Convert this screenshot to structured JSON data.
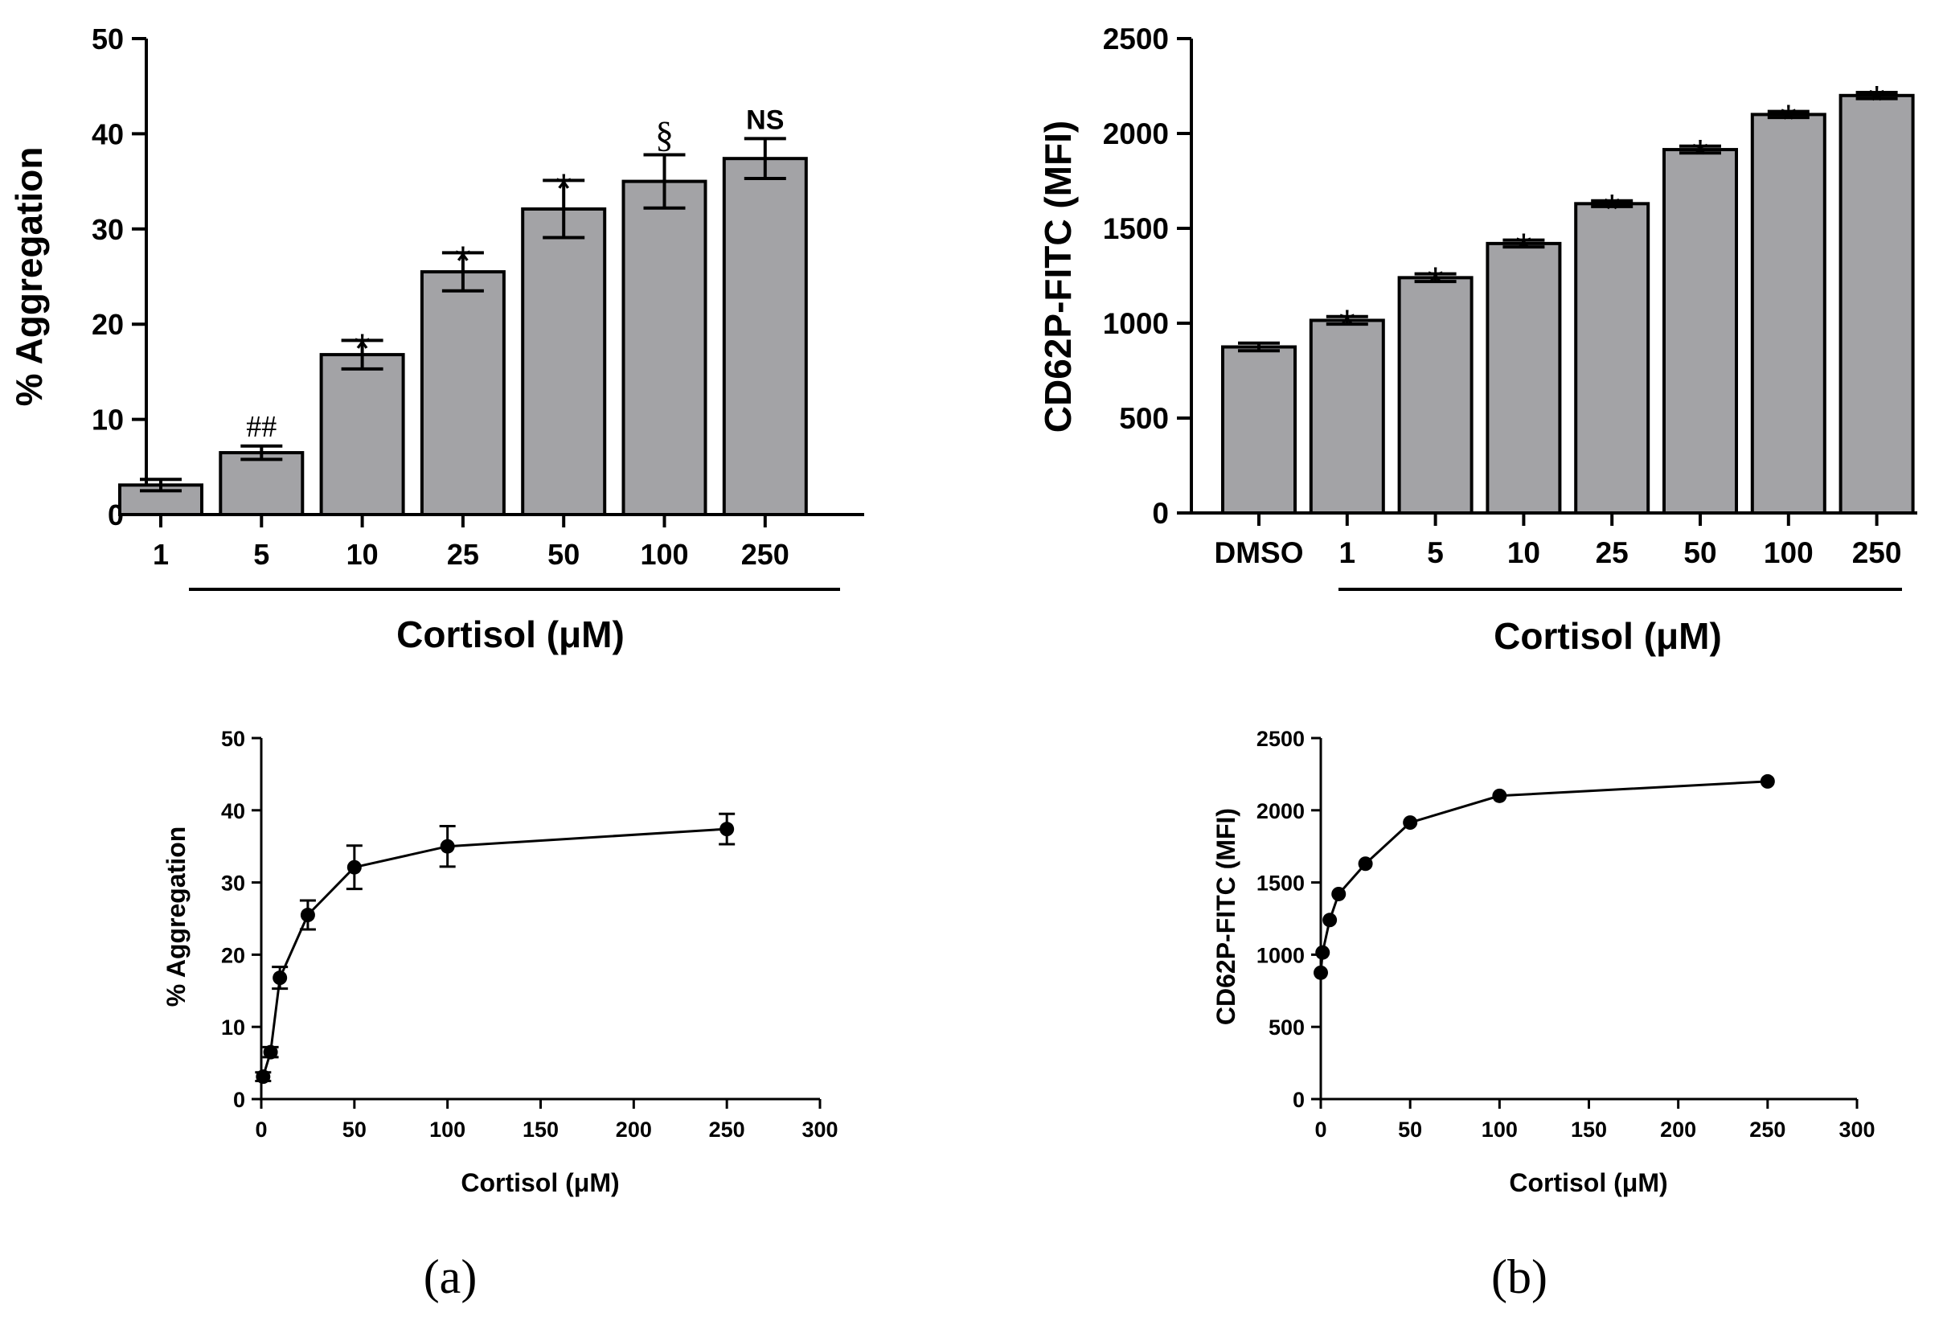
{
  "colors": {
    "bar_fill": "#a3a3a6",
    "axis": "#000000",
    "background": "#ffffff"
  },
  "panel_labels": {
    "a": "(a)",
    "b": "(b)"
  },
  "chart_data": [
    {
      "id": "a-bar",
      "type": "bar",
      "xlabel": "Cortisol (μM)",
      "ylabel": "% Aggregation",
      "ylim": [
        0,
        50
      ],
      "yticks": [
        "0",
        "10",
        "20",
        "30",
        "40",
        "50"
      ],
      "categories": [
        "1",
        "5",
        "10",
        "25",
        "50",
        "100",
        "250"
      ],
      "values": [
        3.1,
        6.5,
        16.8,
        25.5,
        32.1,
        35.0,
        37.4
      ],
      "errors": [
        0.6,
        0.7,
        1.5,
        2.0,
        3.0,
        2.8,
        2.1
      ],
      "annotations": [
        "",
        "##",
        "*",
        "*",
        "*",
        "§",
        "NS"
      ]
    },
    {
      "id": "b-bar",
      "type": "bar",
      "xlabel": "Cortisol (μM)",
      "ylabel": "CD62P-FITC (MFI)",
      "ylim": [
        0,
        2500
      ],
      "yticks": [
        "0",
        "500",
        "1000",
        "1500",
        "2000",
        "2500"
      ],
      "categories": [
        "DMSO",
        "1",
        "5",
        "10",
        "25",
        "50",
        "100",
        "250"
      ],
      "values": [
        875,
        1015,
        1240,
        1420,
        1630,
        1915,
        2100,
        2200
      ],
      "errors": [
        20,
        20,
        20,
        18,
        15,
        18,
        16,
        16
      ],
      "annotations": [
        "",
        "*",
        "*",
        "*",
        "*",
        "*",
        "*",
        "*"
      ]
    },
    {
      "id": "a-line",
      "type": "line",
      "xlabel": "Cortisol (μM)",
      "ylabel": "% Aggregation",
      "xlim": [
        0,
        300
      ],
      "ylim": [
        0,
        50
      ],
      "xticks": [
        "0",
        "50",
        "100",
        "150",
        "200",
        "250",
        "300"
      ],
      "yticks": [
        "0",
        "10",
        "20",
        "30",
        "40",
        "50"
      ],
      "x": [
        1,
        5,
        10,
        25,
        50,
        100,
        250
      ],
      "y": [
        3.1,
        6.5,
        16.8,
        25.5,
        32.1,
        35.0,
        37.4
      ],
      "errors": [
        0.6,
        0.7,
        1.5,
        2.0,
        3.0,
        2.8,
        2.1
      ]
    },
    {
      "id": "b-line",
      "type": "line",
      "xlabel": "Cortisol (μM)",
      "ylabel": "CD62P-FITC (MFI)",
      "xlim": [
        0,
        300
      ],
      "ylim": [
        0,
        2500
      ],
      "xticks": [
        "0",
        "50",
        "100",
        "150",
        "200",
        "250",
        "300"
      ],
      "yticks": [
        "0",
        "500",
        "1000",
        "1500",
        "2000",
        "2500"
      ],
      "x": [
        0,
        1,
        5,
        10,
        25,
        50,
        100,
        250
      ],
      "y": [
        875,
        1015,
        1240,
        1420,
        1630,
        1915,
        2100,
        2200
      ],
      "errors": [
        0,
        0,
        0,
        0,
        0,
        0,
        0,
        0
      ]
    }
  ]
}
